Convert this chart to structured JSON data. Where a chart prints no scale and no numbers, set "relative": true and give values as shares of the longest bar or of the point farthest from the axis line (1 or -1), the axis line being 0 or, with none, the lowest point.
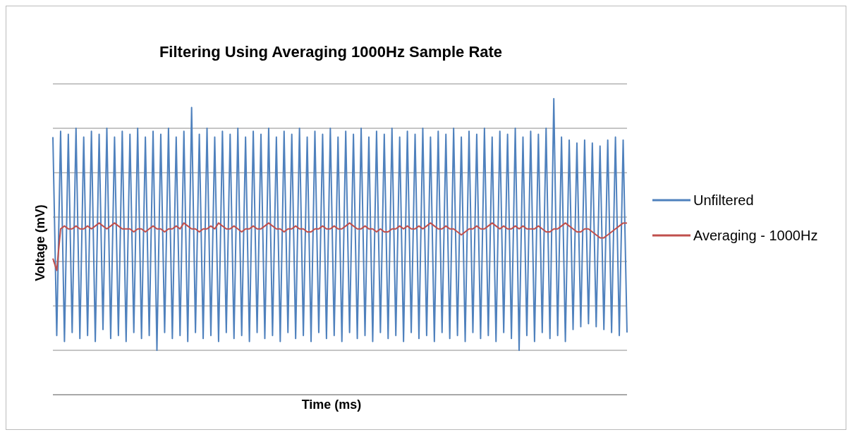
{
  "chart_data": {
    "type": "line",
    "title": "Filtering Using Averaging 1000Hz Sample Rate",
    "xlabel": "Time (ms)",
    "ylabel": "Voltage (mV)",
    "relative": true,
    "grid": "y",
    "legend": "right",
    "categories": [
      null,
      null,
      null,
      null,
      null,
      null,
      null,
      null,
      null,
      null,
      null,
      null,
      null,
      null,
      null,
      null,
      null,
      null,
      null,
      null,
      null,
      null,
      null,
      null,
      null,
      null,
      null,
      null,
      null,
      null,
      null,
      null,
      null,
      null,
      null,
      null,
      null,
      null,
      null,
      null,
      null,
      null,
      null,
      null,
      null,
      null,
      null,
      null,
      null,
      null,
      null,
      null,
      null,
      null,
      null,
      null,
      null,
      null,
      null,
      null,
      null,
      null,
      null,
      null,
      null,
      null,
      null,
      null,
      null,
      null,
      null,
      null,
      null,
      null,
      null,
      null,
      null,
      null,
      null,
      null,
      null,
      null,
      null,
      null,
      null,
      null,
      null,
      null,
      null,
      null,
      null,
      null,
      null,
      null,
      null,
      null,
      null,
      null,
      null,
      null,
      null,
      null,
      null,
      null,
      null,
      null,
      null,
      null,
      null,
      null,
      null,
      null,
      null,
      null,
      null,
      null,
      null,
      null,
      null,
      null,
      null,
      null,
      null,
      null,
      null,
      null,
      null,
      null,
      null,
      null,
      null,
      null,
      null,
      null,
      null,
      null,
      null,
      null,
      null,
      null,
      null,
      null,
      null,
      null,
      null,
      null,
      null,
      null,
      null,
      null
    ],
    "series": [
      {
        "name": "Unfiltered",
        "color": "#4f81bd",
        "values": [
          0.87,
          0.2,
          0.89,
          0.18,
          0.88,
          0.21,
          0.9,
          0.19,
          0.87,
          0.2,
          0.89,
          0.18,
          0.88,
          0.22,
          0.9,
          0.19,
          0.87,
          0.2,
          0.89,
          0.18,
          0.88,
          0.21,
          0.9,
          0.19,
          0.87,
          0.2,
          0.89,
          0.15,
          0.88,
          0.21,
          0.9,
          0.19,
          0.87,
          0.2,
          0.89,
          0.18,
          0.97,
          0.21,
          0.88,
          0.19,
          0.9,
          0.2,
          0.87,
          0.18,
          0.89,
          0.21,
          0.88,
          0.19,
          0.9,
          0.2,
          0.87,
          0.18,
          0.89,
          0.21,
          0.88,
          0.19,
          0.9,
          0.2,
          0.87,
          0.18,
          0.89,
          0.21,
          0.88,
          0.19,
          0.9,
          0.2,
          0.87,
          0.18,
          0.89,
          0.21,
          0.88,
          0.19,
          0.9,
          0.2,
          0.87,
          0.18,
          0.89,
          0.21,
          0.88,
          0.19,
          0.9,
          0.2,
          0.87,
          0.18,
          0.89,
          0.21,
          0.88,
          0.19,
          0.9,
          0.2,
          0.87,
          0.18,
          0.89,
          0.21,
          0.88,
          0.19,
          0.9,
          0.2,
          0.87,
          0.18,
          0.89,
          0.21,
          0.88,
          0.19,
          0.9,
          0.2,
          0.87,
          0.18,
          0.89,
          0.21,
          0.88,
          0.19,
          0.9,
          0.2,
          0.87,
          0.18,
          0.89,
          0.21,
          0.88,
          0.19,
          0.9,
          0.15,
          0.87,
          0.2,
          0.89,
          0.18,
          0.88,
          0.21,
          0.9,
          0.19,
          1.0,
          0.2,
          0.87,
          0.18,
          0.86,
          0.22,
          0.85,
          0.23,
          0.86,
          0.24,
          0.85,
          0.23,
          0.84,
          0.22,
          0.86,
          0.21,
          0.87,
          0.2,
          0.86,
          0.21
        ]
      },
      {
        "name": "Averaging - 1000Hz",
        "color": "#c0504d",
        "values": [
          0.46,
          0.42,
          0.56,
          0.57,
          0.56,
          0.56,
          0.57,
          0.56,
          0.56,
          0.57,
          0.56,
          0.57,
          0.58,
          0.57,
          0.56,
          0.57,
          0.58,
          0.57,
          0.56,
          0.56,
          0.56,
          0.55,
          0.56,
          0.56,
          0.55,
          0.56,
          0.57,
          0.56,
          0.56,
          0.55,
          0.56,
          0.56,
          0.57,
          0.56,
          0.58,
          0.57,
          0.56,
          0.56,
          0.55,
          0.56,
          0.56,
          0.57,
          0.56,
          0.58,
          0.57,
          0.56,
          0.56,
          0.57,
          0.56,
          0.55,
          0.56,
          0.56,
          0.57,
          0.56,
          0.56,
          0.57,
          0.58,
          0.57,
          0.56,
          0.56,
          0.55,
          0.56,
          0.56,
          0.57,
          0.56,
          0.56,
          0.55,
          0.55,
          0.56,
          0.56,
          0.57,
          0.56,
          0.56,
          0.57,
          0.56,
          0.56,
          0.57,
          0.58,
          0.57,
          0.56,
          0.56,
          0.57,
          0.56,
          0.56,
          0.55,
          0.56,
          0.55,
          0.55,
          0.56,
          0.56,
          0.57,
          0.56,
          0.57,
          0.56,
          0.56,
          0.57,
          0.56,
          0.57,
          0.58,
          0.57,
          0.56,
          0.56,
          0.57,
          0.56,
          0.56,
          0.55,
          0.54,
          0.55,
          0.56,
          0.56,
          0.57,
          0.56,
          0.56,
          0.57,
          0.58,
          0.57,
          0.56,
          0.57,
          0.56,
          0.56,
          0.57,
          0.56,
          0.57,
          0.56,
          0.56,
          0.56,
          0.57,
          0.56,
          0.55,
          0.55,
          0.56,
          0.56,
          0.57,
          0.58,
          0.57,
          0.56,
          0.55,
          0.55,
          0.56,
          0.56,
          0.55,
          0.54,
          0.53,
          0.53,
          0.54,
          0.55,
          0.56,
          0.57,
          0.58,
          0.58
        ]
      }
    ]
  }
}
